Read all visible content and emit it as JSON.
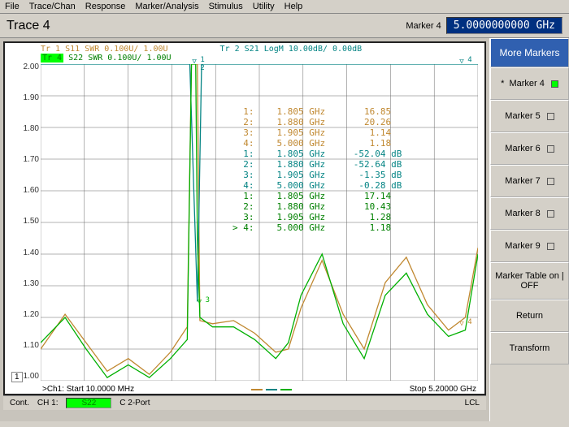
{
  "menu": [
    "File",
    "Trace/Chan",
    "Response",
    "Marker/Analysis",
    "Stimulus",
    "Utility",
    "Help"
  ],
  "toolbar": {
    "trace_title": "Trace 4",
    "marker_label": "Marker 4",
    "marker_value": "5.0000000000 GHz"
  },
  "legends": {
    "tr1": "Tr 1   S11 SWR 0.100U/  1.00U",
    "tr2": "Tr 2   S21 LogM 10.00dB/  0.00dB",
    "tr4_badge": "Tr 4",
    "tr4_rest": " S22 SWR 0.100U/  1.00U"
  },
  "yaxis_ticks": [
    "2.00",
    "1.90",
    "1.80",
    "1.70",
    "1.60",
    "1.50",
    "1.40",
    "1.30",
    "1.20",
    "1.10",
    "1.00"
  ],
  "xaxis": {
    "start": ">Ch1: Start  10.0000 MHz",
    "stop": "Stop  5.20000 GHz"
  },
  "channel_badge": "1",
  "marker_table": [
    {
      "c": "c-orange",
      "n": "  1:",
      "f": "1.805 GHz",
      "v": "   16.85"
    },
    {
      "c": "c-orange",
      "n": "  2:",
      "f": "1.880 GHz",
      "v": "   20.26"
    },
    {
      "c": "c-orange",
      "n": "  3:",
      "f": "1.905 GHz",
      "v": "    1.14"
    },
    {
      "c": "c-orange",
      "n": "  4:",
      "f": "5.000 GHz",
      "v": "    1.18"
    },
    {
      "c": "c-teal",
      "n": "  1:",
      "f": "1.805 GHz",
      "v": " -52.04 dB"
    },
    {
      "c": "c-teal",
      "n": "  2:",
      "f": "1.880 GHz",
      "v": " -52.64 dB"
    },
    {
      "c": "c-teal",
      "n": "  3:",
      "f": "1.905 GHz",
      "v": "  -1.35 dB"
    },
    {
      "c": "c-teal",
      "n": "  4:",
      "f": "5.000 GHz",
      "v": "  -0.28 dB"
    },
    {
      "c": "c-green",
      "n": "  1:",
      "f": "1.805 GHz",
      "v": "   17.14"
    },
    {
      "c": "c-green",
      "n": "  2:",
      "f": "1.880 GHz",
      "v": "   10.43"
    },
    {
      "c": "c-green",
      "n": "  3:",
      "f": "1.905 GHz",
      "v": "    1.28"
    },
    {
      "c": "c-green",
      "n": "> 4:",
      "f": "5.000 GHz",
      "v": "    1.18"
    }
  ],
  "chart": {
    "type": "line",
    "background": "#ffffff",
    "grid_color": "#666666",
    "xlim": [
      10,
      5200
    ],
    "ylim": [
      1.0,
      2.0
    ],
    "x_grid_divisions": 10,
    "y_grid_divisions": 10,
    "series": [
      {
        "name": "S11",
        "color": "#c08830",
        "width": 1.3,
        "x": [
          10,
          300,
          550,
          800,
          1050,
          1300,
          1550,
          1750,
          1800,
          1850,
          1870,
          1900,
          2050,
          2300,
          2550,
          2800,
          2950,
          3100,
          3350,
          3600,
          3850,
          4100,
          4350,
          4600,
          4850,
          5050,
          5200
        ],
        "y": [
          1.1,
          1.21,
          1.12,
          1.03,
          1.07,
          1.02,
          1.09,
          1.17,
          2.0,
          2.0,
          2.0,
          1.19,
          1.18,
          1.19,
          1.15,
          1.09,
          1.1,
          1.23,
          1.38,
          1.21,
          1.1,
          1.31,
          1.39,
          1.24,
          1.16,
          1.2,
          1.42
        ]
      },
      {
        "name": "S21",
        "color": "#048484",
        "width": 1.3,
        "x": [
          10,
          1780,
          1870,
          1920,
          5200
        ],
        "y": [
          2.0,
          2.0,
          1.25,
          2.0,
          2.0
        ]
      },
      {
        "name": "S22",
        "color": "#00b000",
        "width": 1.3,
        "x": [
          10,
          300,
          550,
          800,
          1050,
          1300,
          1550,
          1750,
          1800,
          1850,
          1870,
          1900,
          2050,
          2300,
          2550,
          2800,
          2950,
          3100,
          3350,
          3600,
          3850,
          4100,
          4350,
          4600,
          4850,
          5050,
          5200
        ],
        "y": [
          1.12,
          1.2,
          1.1,
          1.01,
          1.05,
          1.01,
          1.07,
          1.13,
          2.0,
          2.0,
          1.45,
          1.2,
          1.17,
          1.17,
          1.13,
          1.07,
          1.12,
          1.27,
          1.4,
          1.18,
          1.07,
          1.27,
          1.34,
          1.21,
          1.14,
          1.16,
          1.4
        ]
      }
    ],
    "markers_on_plot": [
      {
        "label": "1\n2",
        "x": 1840,
        "y": 2.0,
        "color": "#048484"
      },
      {
        "label": "3",
        "x": 1900,
        "y": 1.25,
        "color": "#00b000"
      },
      {
        "label": "4",
        "x": 5000,
        "y": 2.0,
        "color": "#048484"
      },
      {
        "label": "4",
        "x": 5000,
        "y": 1.18,
        "color": "#c08830"
      }
    ]
  },
  "status": {
    "cont": "Cont.",
    "ch": "CH 1:",
    "s22": "S22",
    "port": "C  2-Port",
    "lcl": "LCL"
  },
  "sidebar": {
    "header": "More Markers",
    "buttons": [
      {
        "label": "Marker 4",
        "active": true,
        "indicator": "on"
      },
      {
        "label": "Marker 5",
        "indicator": "off"
      },
      {
        "label": "Marker 6",
        "indicator": "off"
      },
      {
        "label": "Marker 7",
        "indicator": "off"
      },
      {
        "label": "Marker 8",
        "indicator": "off"
      },
      {
        "label": "Marker 9",
        "indicator": "off"
      },
      {
        "label": "Marker Table on | OFF"
      },
      {
        "label": "Return"
      },
      {
        "label": "Transform"
      }
    ]
  },
  "dash_colors": [
    "#c08830",
    "#048484",
    "#00b000"
  ]
}
